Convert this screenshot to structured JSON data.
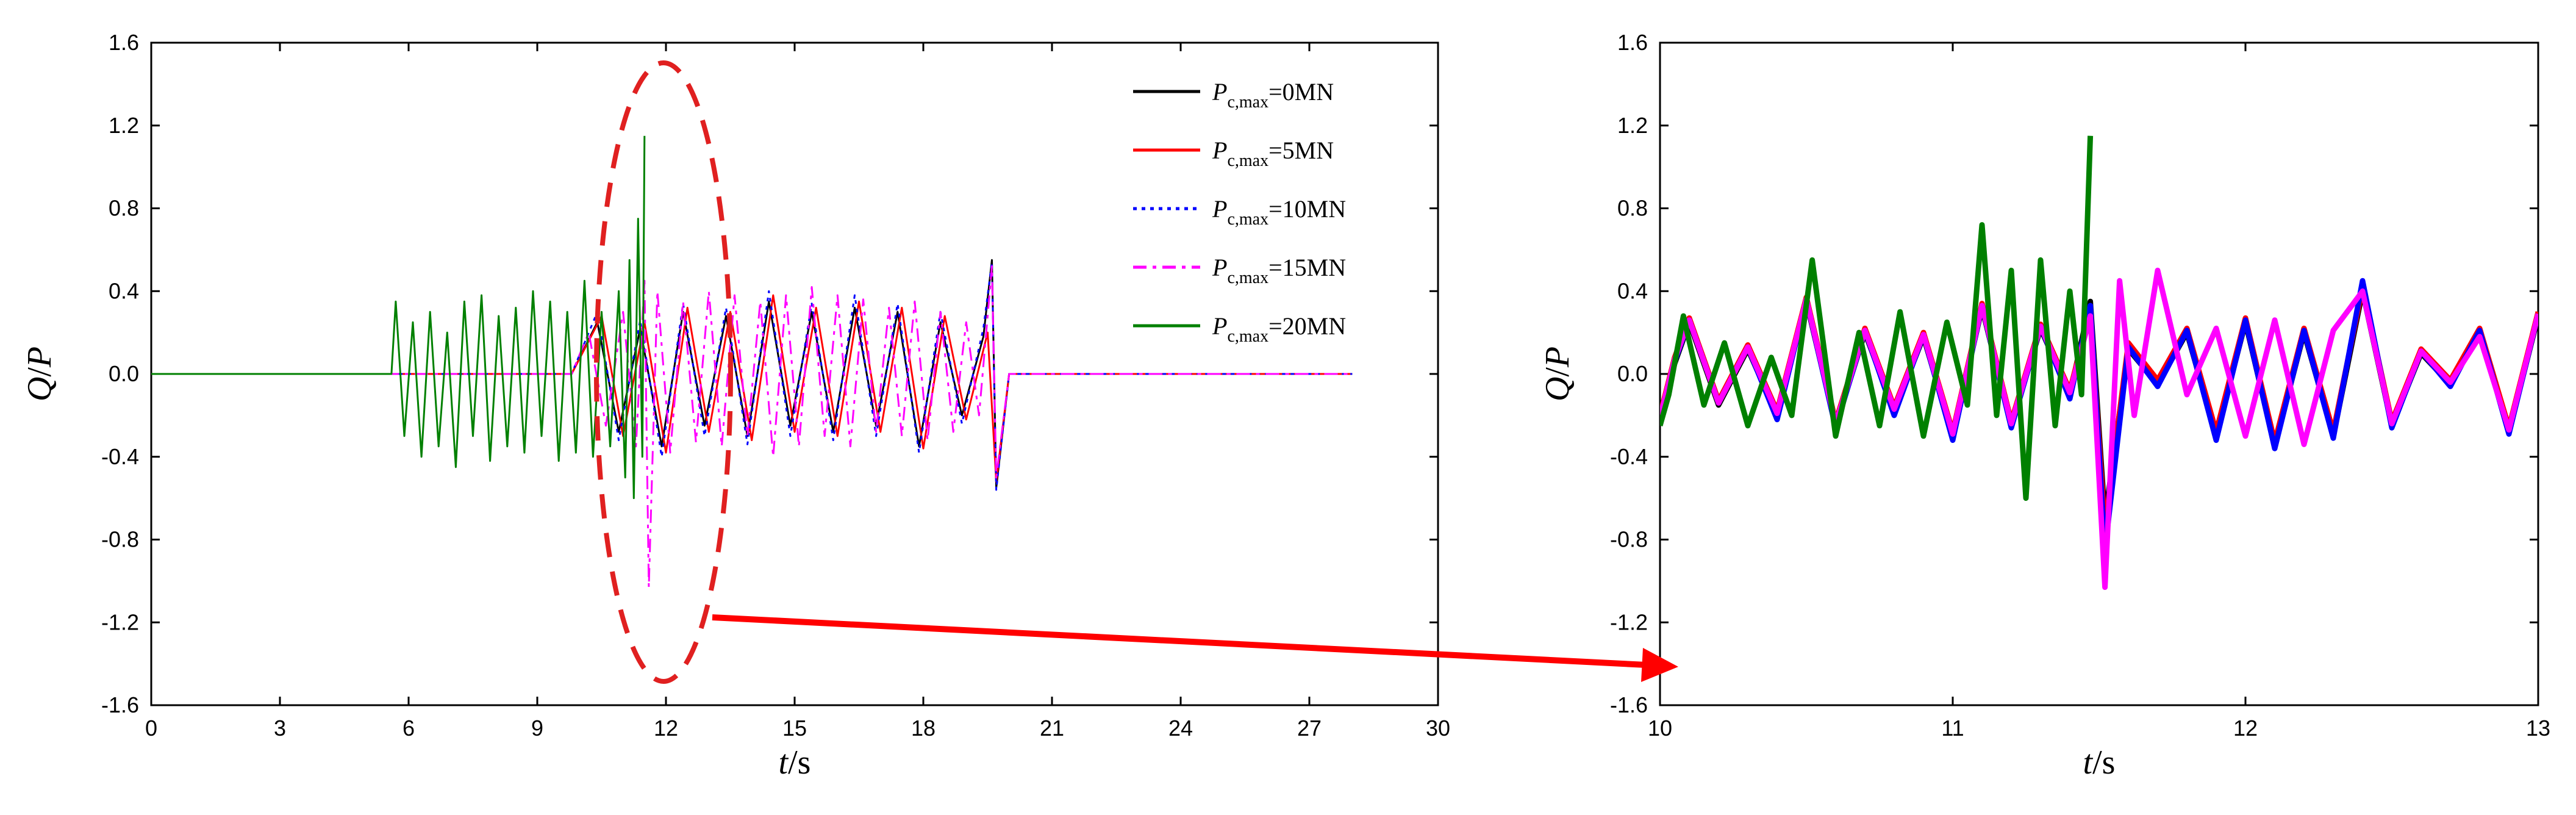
{
  "chart_data": [
    {
      "type": "line",
      "xlim": [
        0,
        30
      ],
      "ylim": [
        -1.6,
        1.6
      ],
      "xticks": [
        "0",
        "3",
        "6",
        "9",
        "12",
        "15",
        "18",
        "21",
        "24",
        "27",
        "30"
      ],
      "yticks": [
        "1.6",
        "1.2",
        "0.8",
        "0.4",
        "0.0",
        "-0.4",
        "-0.8",
        "-1.2",
        "-1.6"
      ],
      "xlabel": {
        "var": "t",
        "unit": "/s"
      },
      "ylabel": {
        "var": "Q",
        "sep": "/",
        "var2": "P"
      },
      "grid": false,
      "legend_position": "top-right",
      "legend": [
        {
          "prefix": "P",
          "sub": "c,max",
          "suffix": "=0MN",
          "color": "#000000",
          "dash": "solid"
        },
        {
          "prefix": "P",
          "sub": "c,max",
          "suffix": "=5MN",
          "color": "#ff0000",
          "dash": "solid"
        },
        {
          "prefix": "P",
          "sub": "c,max",
          "suffix": "=10MN",
          "color": "#0000ff",
          "dash": "dot"
        },
        {
          "prefix": "P",
          "sub": "c,max",
          "suffix": "=15MN",
          "color": "#ff00ff",
          "dash": "dashdot"
        },
        {
          "prefix": "P",
          "sub": "c,max",
          "suffix": "=20MN",
          "color": "#008000",
          "dash": "solid"
        }
      ],
      "series": [
        {
          "color": "#000000",
          "x": [
            0,
            5.6,
            9.8,
            10.4,
            10.9,
            11.4,
            11.9,
            12.4,
            12.9,
            13.4,
            13.9,
            14.4,
            14.9,
            15.4,
            15.9,
            16.4,
            16.9,
            17.4,
            17.9,
            18.4,
            18.9,
            19.4,
            19.6,
            19.7,
            20.0,
            28.0
          ],
          "y": [
            0,
            0,
            0,
            0.25,
            -0.28,
            0.22,
            -0.35,
            0.3,
            -0.25,
            0.28,
            -0.3,
            0.35,
            -0.25,
            0.3,
            -0.28,
            0.32,
            -0.25,
            0.3,
            -0.35,
            0.25,
            -0.2,
            0.18,
            0.55,
            -0.55,
            0,
            0
          ]
        },
        {
          "color": "#ff0000",
          "x": [
            0,
            5.6,
            9.8,
            10.5,
            11.0,
            11.5,
            12.0,
            12.5,
            13.0,
            13.5,
            14.0,
            14.5,
            15.0,
            15.5,
            16.0,
            16.5,
            17.0,
            17.5,
            18.0,
            18.5,
            19.0,
            19.5,
            19.7,
            20.0,
            28.0
          ],
          "y": [
            0,
            0,
            0,
            0.28,
            -0.3,
            0.25,
            -0.38,
            0.32,
            -0.28,
            0.3,
            -0.32,
            0.38,
            -0.28,
            0.32,
            -0.3,
            0.35,
            -0.28,
            0.32,
            -0.36,
            0.28,
            -0.22,
            0.2,
            -0.52,
            0,
            0
          ]
        },
        {
          "color": "#0000ff",
          "x": [
            0,
            5.6,
            9.8,
            10.4,
            10.9,
            11.4,
            11.9,
            12.4,
            12.9,
            13.4,
            13.9,
            14.4,
            14.9,
            15.4,
            15.9,
            16.4,
            16.9,
            17.4,
            17.9,
            18.4,
            18.9,
            19.4,
            19.6,
            19.7,
            20.0,
            28.0
          ],
          "y": [
            0,
            0,
            0,
            0.3,
            -0.32,
            0.26,
            -0.4,
            0.34,
            -0.3,
            0.32,
            -0.34,
            0.4,
            -0.3,
            0.34,
            -0.32,
            0.38,
            -0.3,
            0.34,
            -0.38,
            0.3,
            -0.24,
            0.22,
            0.54,
            -0.56,
            0,
            0
          ]
        },
        {
          "color": "#ff00ff",
          "x": [
            0,
            5.6,
            9.8,
            10.2,
            10.6,
            11.0,
            11.3,
            11.5,
            11.6,
            11.8,
            12.1,
            12.4,
            12.7,
            13.0,
            13.3,
            13.6,
            13.9,
            14.2,
            14.5,
            14.8,
            15.1,
            15.4,
            15.7,
            16.0,
            16.3,
            16.6,
            16.9,
            17.2,
            17.5,
            17.8,
            18.1,
            18.4,
            18.7,
            19.0,
            19.3,
            19.6,
            19.7,
            20.0,
            28.0
          ],
          "y": [
            0,
            0,
            0,
            0.2,
            -0.25,
            0.3,
            -0.35,
            0.45,
            -1.03,
            0.4,
            -0.38,
            0.35,
            -0.33,
            0.4,
            -0.35,
            0.38,
            -0.3,
            0.35,
            -0.4,
            0.38,
            -0.35,
            0.42,
            -0.3,
            0.38,
            -0.35,
            0.36,
            -0.28,
            0.32,
            -0.3,
            0.35,
            -0.32,
            0.3,
            -0.28,
            0.25,
            -0.2,
            0.52,
            -0.5,
            0,
            0
          ]
        },
        {
          "color": "#008000",
          "x": [
            0,
            5.6,
            5.7,
            5.9,
            6.1,
            6.3,
            6.5,
            6.7,
            6.9,
            7.1,
            7.3,
            7.5,
            7.7,
            7.9,
            8.1,
            8.3,
            8.5,
            8.7,
            8.9,
            9.1,
            9.3,
            9.5,
            9.7,
            9.9,
            10.1,
            10.3,
            10.5,
            10.7,
            10.9,
            11.05,
            11.15,
            11.25,
            11.35,
            11.45,
            11.5
          ],
          "y": [
            0,
            0,
            0.35,
            -0.3,
            0.25,
            -0.4,
            0.3,
            -0.35,
            0.2,
            -0.45,
            0.35,
            -0.3,
            0.38,
            -0.42,
            0.28,
            -0.35,
            0.32,
            -0.38,
            0.4,
            -0.3,
            0.35,
            -0.42,
            0.3,
            -0.38,
            0.45,
            -0.4,
            0.3,
            -0.35,
            0.4,
            -0.5,
            0.55,
            -0.6,
            0.75,
            -0.4,
            1.15
          ]
        }
      ]
    },
    {
      "type": "line",
      "xlim": [
        10,
        13
      ],
      "ylim": [
        -1.6,
        1.6
      ],
      "xticks": [
        "10",
        "11",
        "12",
        "13"
      ],
      "yticks": [
        "1.6",
        "1.2",
        "0.8",
        "0.4",
        "0.0",
        "-0.4",
        "-0.8",
        "-1.2",
        "-1.6"
      ],
      "xlabel": {
        "var": "t",
        "unit": "/s"
      },
      "ylabel": {
        "var": "Q",
        "sep": "/",
        "var2": "P"
      },
      "grid": false,
      "series": [
        {
          "color": "#000000",
          "x": [
            10.0,
            10.05,
            10.1,
            10.2,
            10.3,
            10.4,
            10.5,
            10.6,
            10.7,
            10.8,
            10.9,
            11.0,
            11.1,
            11.2,
            11.3,
            11.4,
            11.47,
            11.52,
            11.6,
            11.7,
            11.8,
            11.9,
            12.0,
            12.1,
            12.2,
            12.3,
            12.4,
            12.5,
            12.6,
            12.7,
            12.8,
            12.9,
            13.0
          ],
          "y": [
            -0.22,
            0.05,
            0.25,
            -0.15,
            0.12,
            -0.2,
            0.35,
            -0.25,
            0.2,
            -0.18,
            0.18,
            -0.3,
            0.32,
            -0.25,
            0.22,
            -0.1,
            0.35,
            -0.7,
            0.12,
            -0.05,
            0.2,
            -0.3,
            0.25,
            -0.35,
            0.2,
            -0.3,
            0.4,
            -0.25,
            0.1,
            -0.05,
            0.2,
            -0.28,
            0.28
          ]
        },
        {
          "color": "#ff0000",
          "x": [
            10.0,
            10.05,
            10.1,
            10.2,
            10.3,
            10.4,
            10.5,
            10.6,
            10.7,
            10.8,
            10.9,
            11.0,
            11.1,
            11.2,
            11.3,
            11.4,
            11.47,
            11.52,
            11.6,
            11.7,
            11.8,
            11.9,
            12.0,
            12.1,
            12.2,
            12.3,
            12.4,
            12.5,
            12.6,
            12.7,
            12.8,
            12.9,
            13.0
          ],
          "y": [
            -0.2,
            0.08,
            0.27,
            -0.13,
            0.14,
            -0.18,
            0.37,
            -0.23,
            0.22,
            -0.16,
            0.2,
            -0.28,
            0.34,
            -0.23,
            0.24,
            -0.08,
            0.3,
            -0.75,
            0.15,
            -0.03,
            0.22,
            -0.28,
            0.27,
            -0.33,
            0.22,
            -0.28,
            0.42,
            -0.23,
            0.12,
            -0.03,
            0.22,
            -0.26,
            0.3
          ]
        },
        {
          "color": "#0000ff",
          "x": [
            10.0,
            10.05,
            10.1,
            10.2,
            10.3,
            10.4,
            10.5,
            10.6,
            10.7,
            10.8,
            10.9,
            11.0,
            11.1,
            11.2,
            11.3,
            11.4,
            11.47,
            11.52,
            11.6,
            11.7,
            11.8,
            11.9,
            12.0,
            12.1,
            12.2,
            12.3,
            12.4,
            12.5,
            12.6,
            12.7,
            12.8,
            12.9,
            13.0
          ],
          "y": [
            -0.24,
            0.06,
            0.26,
            -0.14,
            0.13,
            -0.22,
            0.36,
            -0.26,
            0.21,
            -0.2,
            0.19,
            -0.32,
            0.33,
            -0.26,
            0.23,
            -0.12,
            0.33,
            -0.85,
            0.13,
            -0.06,
            0.21,
            -0.32,
            0.26,
            -0.36,
            0.21,
            -0.31,
            0.45,
            -0.26,
            0.11,
            -0.06,
            0.21,
            -0.29,
            0.29
          ]
        },
        {
          "color": "#ff00ff",
          "x": [
            10.0,
            10.05,
            10.1,
            10.2,
            10.3,
            10.4,
            10.5,
            10.6,
            10.7,
            10.8,
            10.9,
            11.0,
            11.1,
            11.2,
            11.3,
            11.4,
            11.47,
            11.52,
            11.57,
            11.62,
            11.7,
            11.8,
            11.9,
            12.0,
            12.1,
            12.2,
            12.3,
            12.4,
            12.5,
            12.6,
            12.7,
            12.8,
            12.9,
            13.0
          ],
          "y": [
            -0.21,
            0.07,
            0.26,
            -0.14,
            0.13,
            -0.19,
            0.36,
            -0.24,
            0.21,
            -0.17,
            0.19,
            -0.29,
            0.33,
            -0.24,
            0.23,
            -0.09,
            0.28,
            -1.03,
            0.45,
            -0.2,
            0.5,
            -0.1,
            0.22,
            -0.3,
            0.26,
            -0.34,
            0.21,
            0.4,
            -0.24,
            0.11,
            -0.04,
            0.18,
            -0.27,
            0.29
          ]
        },
        {
          "color": "#008000",
          "x": [
            10.0,
            10.03,
            10.08,
            10.15,
            10.22,
            10.3,
            10.38,
            10.45,
            10.52,
            10.6,
            10.68,
            10.75,
            10.82,
            10.9,
            10.98,
            11.05,
            11.1,
            11.15,
            11.2,
            11.25,
            11.3,
            11.35,
            11.4,
            11.44,
            11.47
          ],
          "y": [
            -0.25,
            -0.1,
            0.28,
            -0.15,
            0.15,
            -0.25,
            0.08,
            -0.2,
            0.55,
            -0.3,
            0.2,
            -0.25,
            0.3,
            -0.3,
            0.25,
            -0.15,
            0.72,
            -0.2,
            0.5,
            -0.6,
            0.55,
            -0.25,
            0.4,
            -0.1,
            1.15
          ]
        }
      ]
    }
  ]
}
